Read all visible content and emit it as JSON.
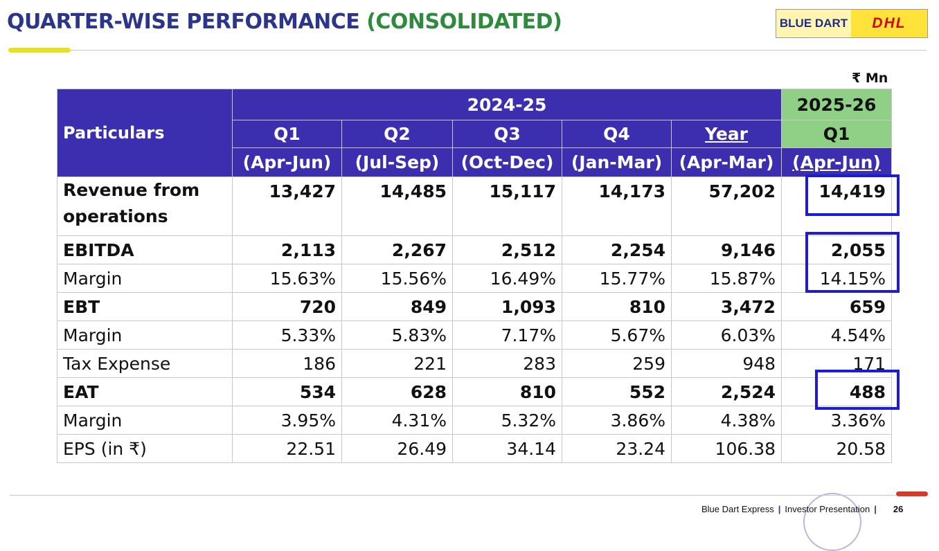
{
  "title": {
    "part1": "QUARTER-WISE PERFORMANCE",
    "part2": "(CONSOLIDATED)"
  },
  "logo": {
    "brand": "BLUE DART",
    "partner": "DHL"
  },
  "unit": "₹ Mn",
  "table": {
    "particulars_header": "Particulars",
    "fy_prev": "2024-25",
    "fy_new": "2025-26",
    "columns": [
      {
        "label": "Q1",
        "period": "(Apr-Jun)"
      },
      {
        "label": "Q2",
        "period": "(Jul-Sep)"
      },
      {
        "label": "Q3",
        "period": "(Oct-Dec)"
      },
      {
        "label": "Q4",
        "period": "(Jan-Mar)"
      },
      {
        "label": "Year",
        "period": "(Apr-Mar)"
      }
    ],
    "new_column": {
      "label": "Q1",
      "period": "(Apr-Jun)"
    },
    "rows": [
      {
        "label": "Revenue from operations",
        "bold": true,
        "values": [
          "13,427",
          "14,485",
          "15,117",
          "14,173",
          "57,202",
          "14,419"
        ]
      },
      {
        "label": "EBITDA",
        "bold": true,
        "values": [
          "2,113",
          "2,267",
          "2,512",
          "2,254",
          "9,146",
          "2,055"
        ]
      },
      {
        "label": "Margin",
        "bold": false,
        "values": [
          "15.63%",
          "15.56%",
          "16.49%",
          "15.77%",
          "15.87%",
          "14.15%"
        ]
      },
      {
        "label": "EBT",
        "bold": true,
        "values": [
          "720",
          "849",
          "1,093",
          "810",
          "3,472",
          "659"
        ]
      },
      {
        "label": "Margin",
        "bold": false,
        "values": [
          "5.33%",
          "5.83%",
          "7.17%",
          "5.67%",
          "6.03%",
          "4.54%"
        ]
      },
      {
        "label": "Tax Expense",
        "bold": false,
        "values": [
          "186",
          "221",
          "283",
          "259",
          "948",
          "171"
        ]
      },
      {
        "label": "EAT",
        "bold": true,
        "values": [
          "534",
          "628",
          "810",
          "552",
          "2,524",
          "488"
        ]
      },
      {
        "label": "Margin",
        "bold": false,
        "values": [
          "3.95%",
          "4.31%",
          "5.32%",
          "3.86%",
          "4.38%",
          "3.36%"
        ]
      },
      {
        "label": "EPS (in ₹)",
        "bold": false,
        "values": [
          "22.51",
          "26.49",
          "34.14",
          "23.24",
          "106.38",
          "20.58"
        ]
      }
    ]
  },
  "footer": {
    "company": "Blue Dart Express",
    "doc": "Investor Presentation",
    "page": "26"
  },
  "colors": {
    "header_bg": "#3b2fb0",
    "new_header_bg": "#8fcf86",
    "highlight_box": "#1c1cd6",
    "accent_yellow": "#e8e020"
  }
}
